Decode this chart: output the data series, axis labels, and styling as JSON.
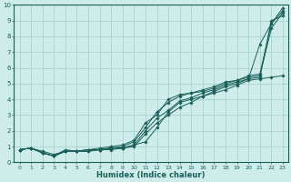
{
  "xlabel": "Humidex (Indice chaleur)",
  "bg_color": "#ceecea",
  "grid_color": "#a8d4d0",
  "line_color": "#1a5f5a",
  "xlim": [
    -0.5,
    23.5
  ],
  "ylim": [
    0,
    10
  ],
  "xticks": [
    0,
    1,
    2,
    3,
    4,
    5,
    6,
    7,
    8,
    9,
    10,
    11,
    12,
    13,
    14,
    15,
    16,
    17,
    18,
    19,
    20,
    21,
    22,
    23
  ],
  "yticks": [
    0,
    1,
    2,
    3,
    4,
    5,
    6,
    7,
    8,
    9,
    10
  ],
  "series": [
    [
      0.8,
      0.9,
      0.7,
      0.5,
      0.7,
      0.7,
      0.8,
      0.8,
      0.8,
      0.9,
      1.1,
      1.3,
      2.2,
      3.2,
      3.8,
      4.0,
      4.2,
      4.4,
      4.6,
      4.9,
      5.2,
      5.3,
      5.4,
      5.5
    ],
    [
      0.8,
      0.9,
      0.6,
      0.4,
      0.7,
      0.7,
      0.7,
      0.8,
      0.9,
      0.9,
      1.0,
      1.8,
      2.5,
      3.0,
      3.5,
      3.8,
      4.2,
      4.5,
      4.8,
      5.0,
      5.3,
      7.5,
      8.8,
      9.8
    ],
    [
      0.8,
      0.9,
      0.6,
      0.4,
      0.7,
      0.7,
      0.7,
      0.8,
      0.9,
      0.9,
      1.1,
      2.0,
      2.8,
      3.3,
      3.9,
      4.1,
      4.4,
      4.6,
      4.9,
      5.1,
      5.3,
      5.4,
      9.0,
      9.3
    ],
    [
      0.8,
      0.9,
      0.6,
      0.4,
      0.7,
      0.7,
      0.8,
      0.8,
      0.9,
      1.0,
      1.3,
      2.2,
      3.2,
      3.8,
      4.2,
      4.4,
      4.5,
      4.7,
      5.0,
      5.2,
      5.4,
      5.5,
      8.5,
      9.5
    ],
    [
      0.8,
      0.9,
      0.6,
      0.4,
      0.8,
      0.7,
      0.8,
      0.9,
      1.0,
      1.1,
      1.4,
      2.5,
      3.0,
      4.0,
      4.3,
      4.4,
      4.6,
      4.8,
      5.1,
      5.2,
      5.5,
      5.6,
      8.8,
      9.6
    ]
  ]
}
